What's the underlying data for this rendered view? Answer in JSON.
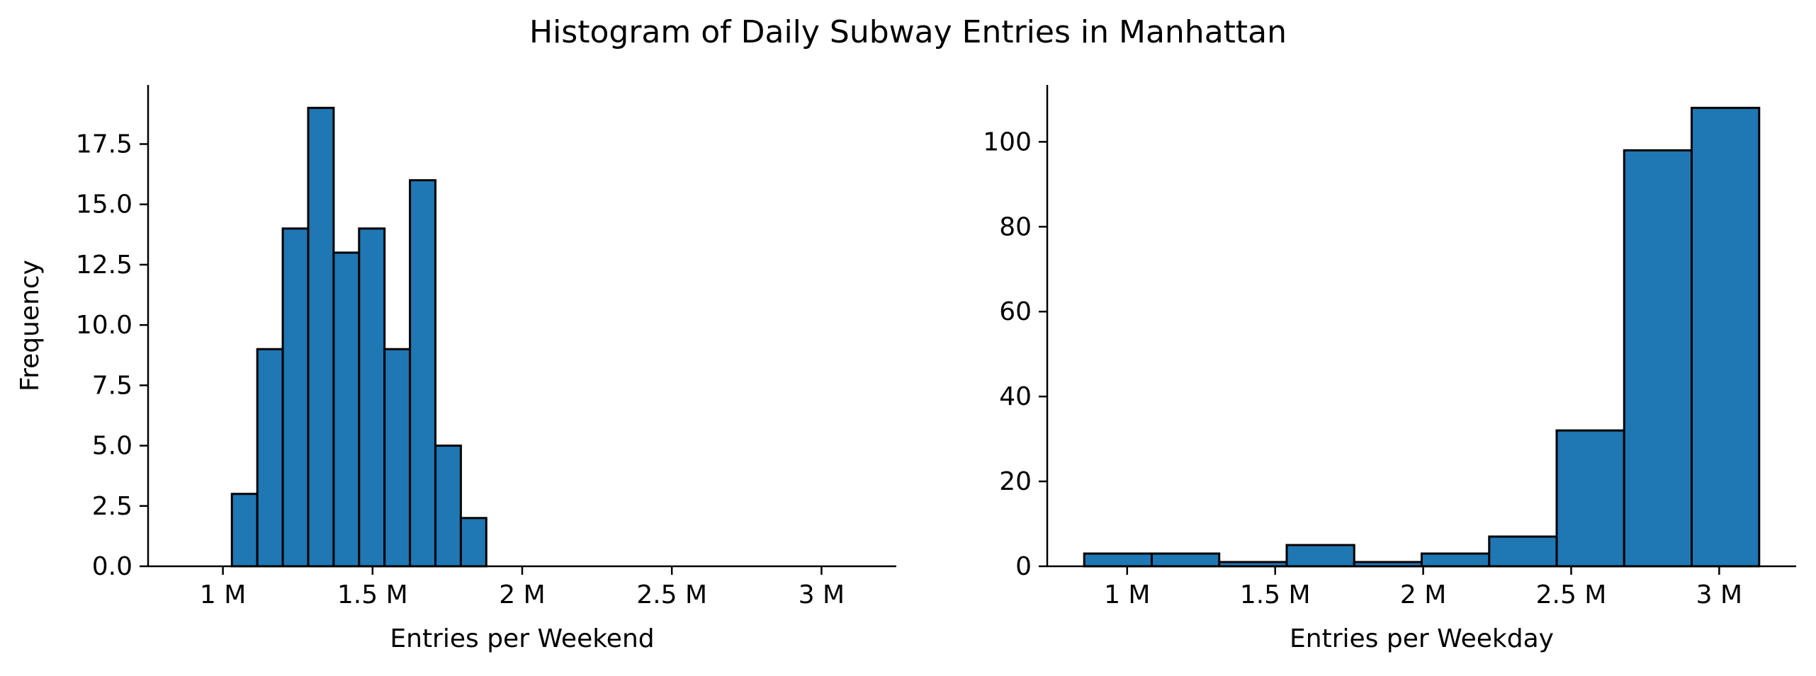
{
  "title": "Histogram of Daily Subway Entries in Manhattan",
  "chart_data": [
    {
      "type": "bar",
      "subtype": "histogram",
      "xlabel": "Entries per Weekend",
      "ylabel": "Frequency",
      "xlim": [
        750000,
        3250000
      ],
      "ylim": [
        0,
        19.95
      ],
      "xticks": [
        {
          "value": 1000000,
          "label": "1 M"
        },
        {
          "value": 1500000,
          "label": "1.5 M"
        },
        {
          "value": 2000000,
          "label": "2 M"
        },
        {
          "value": 2500000,
          "label": "2.5 M"
        },
        {
          "value": 3000000,
          "label": "3 M"
        }
      ],
      "yticks": [
        {
          "value": 0,
          "label": "0.0"
        },
        {
          "value": 2.5,
          "label": "2.5"
        },
        {
          "value": 5,
          "label": "5.0"
        },
        {
          "value": 7.5,
          "label": "7.5"
        },
        {
          "value": 10,
          "label": "10.0"
        },
        {
          "value": 12.5,
          "label": "12.5"
        },
        {
          "value": 15,
          "label": "15.0"
        },
        {
          "value": 17.5,
          "label": "17.5"
        }
      ],
      "bin_edges": [
        1030000,
        1115000,
        1200000,
        1285000,
        1370000,
        1455000,
        1540000,
        1625000,
        1710000,
        1795000,
        1880000
      ],
      "values": [
        3,
        9,
        14,
        19,
        13,
        14,
        9,
        16,
        5,
        2
      ],
      "color": "#1f77b4",
      "edgecolor": "#000000",
      "grid": false
    },
    {
      "type": "bar",
      "subtype": "histogram",
      "xlabel": "Entries per Weekday",
      "ylabel": "",
      "xlim": [
        730000,
        3260000
      ],
      "ylim": [
        0,
        113.4
      ],
      "xticks": [
        {
          "value": 1000000,
          "label": "1 M"
        },
        {
          "value": 1500000,
          "label": "1.5 M"
        },
        {
          "value": 2000000,
          "label": "2 M"
        },
        {
          "value": 2500000,
          "label": "2.5 M"
        },
        {
          "value": 3000000,
          "label": "3 M"
        }
      ],
      "yticks": [
        {
          "value": 0,
          "label": "0"
        },
        {
          "value": 20,
          "label": "20"
        },
        {
          "value": 40,
          "label": "40"
        },
        {
          "value": 60,
          "label": "60"
        },
        {
          "value": 80,
          "label": "80"
        },
        {
          "value": 100,
          "label": "100"
        }
      ],
      "bin_edges": [
        855000,
        1083000,
        1311000,
        1539000,
        1767000,
        1995000,
        2223000,
        2451000,
        2679000,
        2907000,
        3135000
      ],
      "values": [
        3,
        3,
        1,
        5,
        1,
        3,
        7,
        32,
        98,
        108
      ],
      "color": "#1f77b4",
      "edgecolor": "#000000",
      "grid": false
    }
  ]
}
